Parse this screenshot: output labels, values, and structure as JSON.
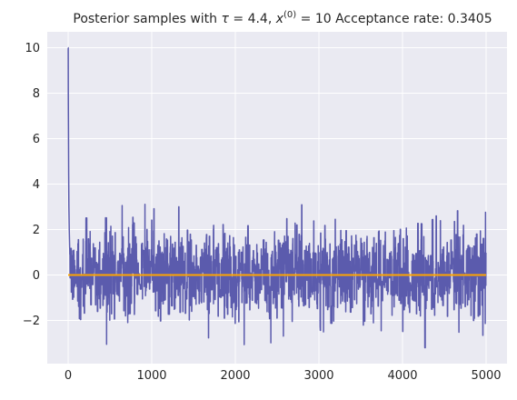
{
  "chart_data": {
    "type": "line",
    "title": "Posterior samples with τ = 4.4, x(0) = 10 Acceptance rate: 0.3405",
    "title_parts": {
      "prefix": "Posterior samples with ",
      "tau_symbol": "τ",
      "tau_text": " = 4.4, ",
      "x_symbol": "x",
      "x_superscript": "(0)",
      "suffix": " = 10 Acceptance rate: 0.3405"
    },
    "xlabel": "",
    "ylabel": "",
    "xlim": [
      -250,
      5250
    ],
    "ylim": [
      -3.9,
      10.7
    ],
    "x_ticks": [
      0,
      1000,
      2000,
      3000,
      4000,
      5000
    ],
    "y_ticks": [
      -2,
      0,
      2,
      4,
      6,
      8,
      10
    ],
    "grid": true,
    "background_color": "#EAEAF2",
    "grid_color": "#FFFFFF",
    "series": [
      {
        "color": "#5B5BAD",
        "n_samples": 5000,
        "initial_value": 10,
        "burn_in_points": [
          [
            0,
            10
          ],
          [
            1,
            10
          ],
          [
            2,
            8.0
          ],
          [
            4,
            6.3
          ],
          [
            6,
            4.5
          ],
          [
            9,
            3.0
          ],
          [
            13,
            2.0
          ],
          [
            18,
            1.2
          ]
        ],
        "stationary_mean": 0,
        "stationary_sd": 0.95,
        "observed_min": -3.2,
        "observed_max": 3.2
      },
      {
        "color": "#FFA500",
        "x": [
          0,
          5000
        ],
        "values": [
          0,
          0
        ]
      }
    ]
  }
}
